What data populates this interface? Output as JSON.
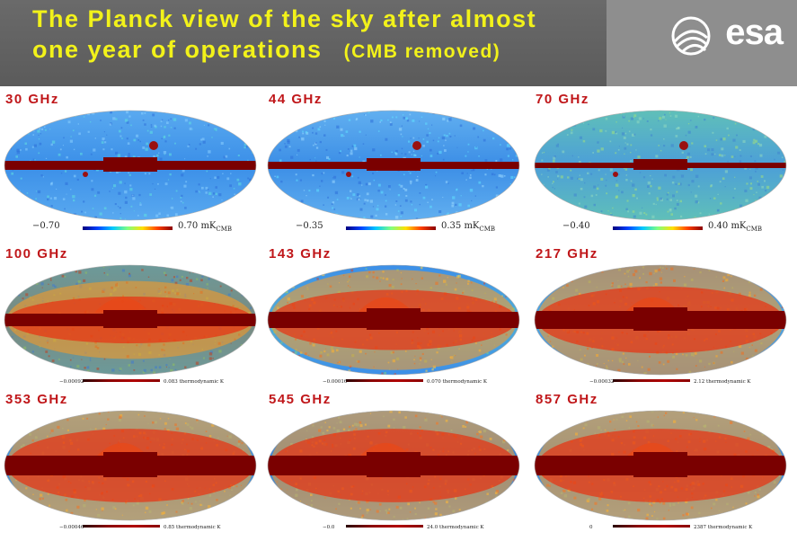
{
  "header": {
    "title_line1": "The Planck view of the sky after almost",
    "title_line2": "one year of operations",
    "title_note": "(CMB removed)",
    "logo_text": "esa"
  },
  "colors": {
    "header_bg": "#606060",
    "logo_panel": "#8e8e8e",
    "title_text": "#f2f21a",
    "freq_label": "#c0171a",
    "galactic_plane": "#7a0000"
  },
  "maps": [
    {
      "freq": "30 GHz",
      "scale_min": "−0.70",
      "scale_max": "0.70 mK",
      "unit_sub": "CMB",
      "style": "lfi30"
    },
    {
      "freq": "44 GHz",
      "scale_min": "−0.35",
      "scale_max": "0.35 mK",
      "unit_sub": "CMB",
      "style": "lfi44"
    },
    {
      "freq": "70 GHz",
      "scale_min": "−0.40",
      "scale_max": "0.40 mK",
      "unit_sub": "CMB",
      "style": "lfi70"
    },
    {
      "freq": "100 GHz",
      "scale_min": "−0.00092",
      "scale_max": "0.083 thermodynamic K",
      "unit_sub": "",
      "style": "hfi100"
    },
    {
      "freq": "143 GHz",
      "scale_min": "−0.00016",
      "scale_max": "0.070 thermodynamic K",
      "unit_sub": "",
      "style": "hfi143"
    },
    {
      "freq": "217 GHz",
      "scale_min": "−0.00032",
      "scale_max": "2.12 thermodynamic K",
      "unit_sub": "",
      "style": "hfi217"
    },
    {
      "freq": "353 GHz",
      "scale_min": "−0.00046",
      "scale_max": "0.85 thermodynamic K",
      "unit_sub": "",
      "style": "hfi353"
    },
    {
      "freq": "545 GHz",
      "scale_min": "−0.0",
      "scale_max": "24.0 thermodynamic K",
      "unit_sub": "",
      "style": "hfi545"
    },
    {
      "freq": "857 GHz",
      "scale_min": "0",
      "scale_max": "2387 thermodynamic K",
      "unit_sub": "",
      "style": "hfi857"
    }
  ]
}
